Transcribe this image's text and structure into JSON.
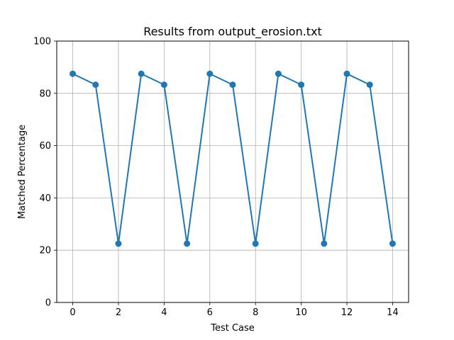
{
  "chart_data": {
    "type": "line",
    "title": "Results from output_erosion.txt",
    "xlabel": "Test Case",
    "ylabel": "Matched Percentage",
    "xlim": [
      -0.7,
      14.7
    ],
    "ylim": [
      0,
      100
    ],
    "x_ticks": [
      0,
      2,
      4,
      6,
      8,
      10,
      12,
      14
    ],
    "y_ticks": [
      0,
      20,
      40,
      60,
      80,
      100
    ],
    "grid": true,
    "marker": "circle",
    "series": [
      {
        "color": "#1f77b4",
        "x": [
          0,
          1,
          2,
          3,
          4,
          5,
          6,
          7,
          8,
          9,
          10,
          11,
          12,
          13,
          14
        ],
        "values": [
          87.5,
          83.3,
          22.5,
          87.5,
          83.3,
          22.5,
          87.5,
          83.3,
          22.5,
          87.5,
          83.3,
          22.5,
          87.5,
          83.3,
          22.5
        ]
      }
    ]
  }
}
